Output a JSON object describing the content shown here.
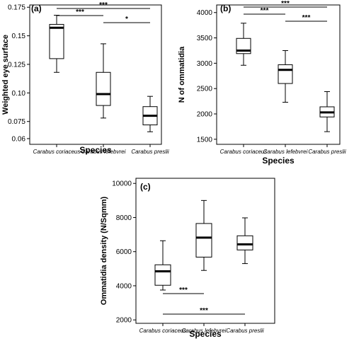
{
  "chart_data": [
    {
      "type": "box",
      "panel_label": "(a)",
      "xlabel": "Species",
      "ylabel": "Weighted eye surface",
      "categories": [
        "Carabus coriaceus",
        "Carabus lefebvrei",
        "Carabus preslii"
      ],
      "ylim": [
        0.055,
        0.177
      ],
      "yticks": [
        0.06,
        0.075,
        0.1,
        0.125,
        0.15,
        0.175
      ],
      "ytick_labels": [
        "0.06",
        "0.075",
        "0.10",
        "0.125",
        "0.15",
        "0.175"
      ],
      "boxes": [
        {
          "min": 0.118,
          "q1": 0.13,
          "median": 0.157,
          "q3": 0.16,
          "max": 0.168
        },
        {
          "min": 0.078,
          "q1": 0.089,
          "median": 0.099,
          "q3": 0.118,
          "max": 0.143
        },
        {
          "min": 0.066,
          "q1": 0.072,
          "median": 0.08,
          "q3": 0.088,
          "max": 0.097
        }
      ],
      "significance": [
        {
          "from": 0,
          "to": 2,
          "label": "***"
        },
        {
          "from": 0,
          "to": 1,
          "label": "***"
        },
        {
          "from": 1,
          "to": 2,
          "label": "*"
        }
      ]
    },
    {
      "type": "box",
      "panel_label": "(b)",
      "xlabel": "Species",
      "ylabel": "N of ommatidia",
      "categories": [
        "Carabus coriaceus",
        "Carabus lefebvrei",
        "Carabus preslii"
      ],
      "ylim": [
        1400,
        4150
      ],
      "yticks": [
        1500,
        2000,
        2500,
        3000,
        3500,
        4000
      ],
      "ytick_labels": [
        "1500",
        "2000",
        "2500",
        "3000",
        "3500",
        "4000"
      ],
      "boxes": [
        {
          "min": 2960,
          "q1": 3190,
          "median": 3250,
          "q3": 3490,
          "max": 3790
        },
        {
          "min": 2230,
          "q1": 2600,
          "median": 2870,
          "q3": 2970,
          "max": 3250
        },
        {
          "min": 1650,
          "q1": 1940,
          "median": 2030,
          "q3": 2140,
          "max": 2440
        }
      ],
      "significance": [
        {
          "from": 0,
          "to": 2,
          "label": "***"
        },
        {
          "from": 0,
          "to": 1,
          "label": "***"
        },
        {
          "from": 1,
          "to": 2,
          "label": "***"
        }
      ]
    },
    {
      "type": "box",
      "panel_label": "(c)",
      "xlabel": "Species",
      "ylabel": "Ommatidia density (N/Sqmm)",
      "categories": [
        "Carabus coriaceus",
        "Carabus lefebvrei",
        "Carabus preslii"
      ],
      "ylim": [
        1800,
        10300
      ],
      "yticks": [
        2000,
        4000,
        6000,
        8000,
        10000
      ],
      "ytick_labels": [
        "2000",
        "4000",
        "6000",
        "8000",
        "10000"
      ],
      "boxes": [
        {
          "min": 3750,
          "q1": 4030,
          "median": 4850,
          "q3": 5230,
          "max": 6640
        },
        {
          "min": 4900,
          "q1": 5680,
          "median": 6820,
          "q3": 7650,
          "max": 9000
        },
        {
          "min": 5300,
          "q1": 6100,
          "median": 6430,
          "q3": 6930,
          "max": 7980
        }
      ],
      "significance": [
        {
          "from": 0,
          "to": 1,
          "label": "***"
        },
        {
          "from": 0,
          "to": 2,
          "label": "***"
        }
      ]
    }
  ]
}
